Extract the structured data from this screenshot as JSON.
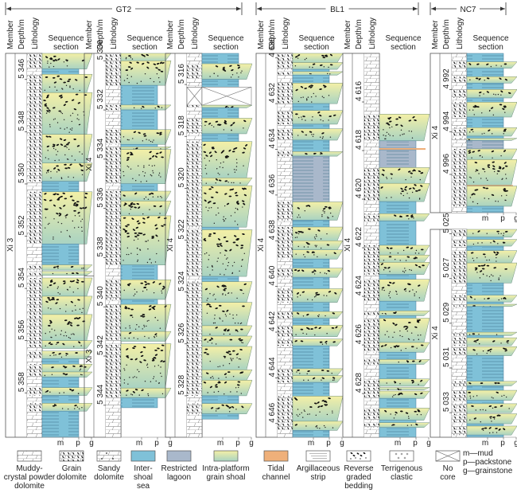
{
  "wells": [
    {
      "name": "GT2",
      "label": "GT2"
    },
    {
      "name": "BL1",
      "label": "BL1"
    },
    {
      "name": "NC7",
      "label": "NC7"
    }
  ],
  "column_headers": {
    "member": "Member",
    "depth": "Depth/m",
    "lithology": "Lithology",
    "sequence_line1": "Sequence",
    "sequence_line2": "section"
  },
  "scale_labels": {
    "m": "m",
    "p": "p",
    "g": "g"
  },
  "columns": [
    {
      "well": "GT2",
      "members": [
        {
          "label": "Xi 3",
          "from": 0,
          "to": 1
        }
      ],
      "depths": [
        "5 346",
        "5 348",
        "5 350",
        "5 352",
        "5 354",
        "5 356",
        "5 358"
      ],
      "depth_start": 5345.0,
      "depth_end": 5359.7,
      "beds": [
        [
          "shoal",
          0.0,
          0.6,
          "g"
        ],
        [
          "inter",
          0.6,
          0.8,
          "p"
        ],
        [
          "shoal",
          0.8,
          1.5,
          "g"
        ],
        [
          "shoal",
          1.5,
          3.1,
          "g"
        ],
        [
          "shoal",
          3.1,
          4.2,
          "g"
        ],
        [
          "shoal",
          4.2,
          4.9,
          "g"
        ],
        [
          "inter",
          4.9,
          5.3,
          "p"
        ],
        [
          "shoal",
          5.3,
          7.3,
          "g"
        ],
        [
          "inter",
          7.3,
          8.1,
          "p"
        ],
        [
          "shoal",
          8.1,
          8.3,
          "g"
        ],
        [
          "shoal",
          8.35,
          8.5,
          "g"
        ],
        [
          "shoal",
          8.6,
          9.3,
          "g"
        ],
        [
          "shoal",
          9.3,
          10.0,
          "g"
        ],
        [
          "shoal",
          10.0,
          11.0,
          "g"
        ],
        [
          "shoal",
          11.0,
          11.3,
          "g"
        ],
        [
          "shoal",
          11.4,
          11.7,
          "g"
        ],
        [
          "inter",
          11.7,
          11.9,
          "p"
        ],
        [
          "shoal",
          11.9,
          12.2,
          "g"
        ],
        [
          "shoal",
          12.2,
          12.4,
          "g"
        ],
        [
          "inter",
          12.4,
          12.8,
          "p"
        ],
        [
          "shoal",
          12.8,
          13.1,
          "g"
        ],
        [
          "inter",
          13.1,
          13.4,
          "p"
        ],
        [
          "shoal",
          13.4,
          13.7,
          "g"
        ],
        [
          "inter",
          13.7,
          14.7,
          "p"
        ]
      ]
    },
    {
      "well": "GT2",
      "members": [
        {
          "label": "Xi 4",
          "from": 0,
          "to": 0.58
        },
        {
          "label": "Xi 3",
          "from": 0.58,
          "to": 1
        }
      ],
      "depths": [
        "5 330",
        "5 332",
        "5 334",
        "5 336",
        "5 338",
        "5 340",
        "5 342",
        "5 344"
      ],
      "depth_start": 5329.7,
      "depth_end": 5345.3,
      "beds": [
        [
          "shoal",
          0.0,
          0.3,
          "g"
        ],
        [
          "shoal",
          0.3,
          1.3,
          "g"
        ],
        [
          "inter",
          1.3,
          2.1,
          "p"
        ],
        [
          "shoal",
          2.1,
          2.3,
          "g"
        ],
        [
          "inter",
          2.3,
          3.1,
          "p"
        ],
        [
          "shoal",
          3.1,
          3.7,
          "g"
        ],
        [
          "inter",
          3.7,
          3.8,
          "p"
        ],
        [
          "shoal",
          3.8,
          3.9,
          "g"
        ],
        [
          "shoal",
          3.9,
          5.3,
          "g"
        ],
        [
          "inter",
          5.3,
          5.6,
          "p"
        ],
        [
          "shoal",
          5.6,
          6.0,
          "g"
        ],
        [
          "shoal",
          6.0,
          6.6,
          "g"
        ],
        [
          "shoal",
          6.6,
          8.6,
          "g"
        ],
        [
          "inter",
          8.6,
          9.2,
          "p"
        ],
        [
          "shoal",
          9.2,
          10.0,
          "g"
        ],
        [
          "inter",
          10.0,
          10.2,
          "p"
        ],
        [
          "shoal",
          10.2,
          11.3,
          "g"
        ],
        [
          "shoal",
          11.3,
          11.7,
          "g"
        ],
        [
          "shoal",
          11.8,
          13.6,
          "g"
        ],
        [
          "shoal",
          13.6,
          14.0,
          "g"
        ],
        [
          "inter",
          14.0,
          14.4,
          "p"
        ]
      ]
    },
    {
      "well": "GT2",
      "members": [
        {
          "label": "Xi 4",
          "from": 0,
          "to": 1
        }
      ],
      "depths": [
        "5 316",
        "5 318",
        "5 320",
        "5 322",
        "5 324",
        "5 326",
        "5 328"
      ],
      "depth_start": 5314.8,
      "depth_end": 5329.6,
      "beds": [
        [
          "inter",
          0.0,
          0.4,
          "p"
        ],
        [
          "shoal",
          0.4,
          1.0,
          "g"
        ],
        [
          "inter",
          1.0,
          1.3,
          "p"
        ],
        [
          "nocore",
          1.3,
          2.0,
          "g"
        ],
        [
          "shoal",
          2.0,
          2.1,
          "g"
        ],
        [
          "inter",
          2.1,
          2.5,
          "p"
        ],
        [
          "shoal",
          2.5,
          3.1,
          "g"
        ],
        [
          "inter",
          3.1,
          3.4,
          "p"
        ],
        [
          "shoal",
          3.4,
          4.8,
          "g"
        ],
        [
          "shoal",
          4.8,
          5.1,
          "g"
        ],
        [
          "shoal",
          5.1,
          6.7,
          "g"
        ],
        [
          "inter",
          6.7,
          6.8,
          "p"
        ],
        [
          "shoal",
          6.8,
          8.6,
          "g"
        ],
        [
          "inter",
          8.6,
          8.8,
          "p"
        ],
        [
          "shoal",
          8.8,
          9.6,
          "g"
        ],
        [
          "shoal",
          9.6,
          10.5,
          "g"
        ],
        [
          "shoal",
          10.5,
          10.9,
          "g"
        ],
        [
          "shoal",
          10.9,
          11.3,
          "g"
        ],
        [
          "shoal",
          11.3,
          12.2,
          "g"
        ],
        [
          "shoal",
          12.2,
          12.6,
          "g"
        ],
        [
          "shoal",
          12.6,
          13.2,
          "g"
        ],
        [
          "inter",
          13.2,
          13.5,
          "p"
        ],
        [
          "shoal",
          13.5,
          13.9,
          "g"
        ],
        [
          "inter",
          13.9,
          14.1,
          "p"
        ]
      ]
    },
    {
      "well": "BL1",
      "members": [
        {
          "label": "Xi 4",
          "from": 0,
          "to": 1
        }
      ],
      "depths": [
        "4 630",
        "4 632",
        "4 634",
        "4 636",
        "4 638",
        "4 640",
        "4 642",
        "4 644",
        "4 646"
      ],
      "depth_start": 4629.8,
      "depth_end": 4646.6,
      "beds": [
        [
          "shoal",
          0.0,
          0.4,
          "g"
        ],
        [
          "shoal",
          0.4,
          0.7,
          "g"
        ],
        [
          "inter",
          0.7,
          0.8,
          "p"
        ],
        [
          "shoal",
          0.8,
          0.95,
          "g"
        ],
        [
          "inter",
          0.95,
          1.3,
          "p"
        ],
        [
          "shoal",
          1.3,
          2.2,
          "g"
        ],
        [
          "inter",
          2.2,
          2.5,
          "p"
        ],
        [
          "shoal",
          2.5,
          3.1,
          "g"
        ],
        [
          "inter",
          3.1,
          3.3,
          "p"
        ],
        [
          "shoal",
          3.3,
          3.8,
          "g"
        ],
        [
          "inter",
          3.8,
          4.3,
          "p"
        ],
        [
          "shoal",
          4.3,
          4.5,
          "g"
        ],
        [
          "lagoon",
          4.5,
          6.5,
          "p"
        ],
        [
          "shoal",
          6.5,
          7.3,
          "g"
        ],
        [
          "inter",
          7.3,
          7.6,
          "p"
        ],
        [
          "shoal",
          7.6,
          8.2,
          "g"
        ],
        [
          "shoal",
          8.2,
          8.6,
          "g"
        ],
        [
          "shoal",
          8.6,
          9.0,
          "g"
        ],
        [
          "inter",
          9.0,
          9.4,
          "p"
        ],
        [
          "shoal",
          9.4,
          9.8,
          "g"
        ],
        [
          "inter",
          9.8,
          10.3,
          "p"
        ],
        [
          "shoal",
          10.3,
          10.9,
          "g"
        ],
        [
          "inter",
          10.9,
          11.3,
          "p"
        ],
        [
          "shoal",
          11.3,
          11.6,
          "g"
        ],
        [
          "inter",
          11.6,
          11.9,
          "p"
        ],
        [
          "shoal",
          11.9,
          12.4,
          "g"
        ],
        [
          "shoal",
          12.5,
          12.8,
          "g"
        ],
        [
          "inter",
          12.8,
          13.8,
          "p"
        ],
        [
          "shoal",
          13.8,
          14.1,
          "g"
        ],
        [
          "shoal",
          14.1,
          14.4,
          "g"
        ],
        [
          "inter",
          14.4,
          15.0,
          "p"
        ],
        [
          "shoal",
          15.0,
          16.1,
          "g"
        ],
        [
          "shoal",
          16.1,
          16.5,
          "g"
        ],
        [
          "inter",
          16.5,
          16.8,
          "p"
        ]
      ]
    },
    {
      "well": "BL1",
      "members": [
        {
          "label": "Xi 4",
          "from": 0,
          "to": 1
        }
      ],
      "depths": [
        "4 616",
        "4 618",
        "4 620",
        "4 622",
        "4 624",
        "4 626",
        "4 628"
      ],
      "depth_start": 4614.0,
      "depth_end": 4629.8,
      "beds": [
        [
          "shoal",
          2.5,
          3.6,
          "g"
        ],
        [
          "lagoon",
          3.6,
          3.9,
          "p"
        ],
        [
          "tidal",
          3.9,
          3.97,
          "g"
        ],
        [
          "lagoon",
          3.97,
          4.7,
          "p"
        ],
        [
          "shoal",
          4.7,
          5.35,
          "g"
        ],
        [
          "shoal",
          5.35,
          6.1,
          "g"
        ],
        [
          "inter",
          6.1,
          6.6,
          "p"
        ],
        [
          "shoal",
          6.6,
          6.9,
          "g"
        ],
        [
          "inter",
          6.9,
          7.9,
          "p"
        ],
        [
          "shoal",
          7.9,
          8.3,
          "g"
        ],
        [
          "shoal",
          8.3,
          8.6,
          "g"
        ],
        [
          "shoal",
          8.6,
          9.1,
          "g"
        ],
        [
          "inter",
          9.1,
          9.3,
          "p"
        ],
        [
          "shoal",
          9.3,
          10.2,
          "g"
        ],
        [
          "inter",
          10.2,
          10.6,
          "p"
        ],
        [
          "shoal",
          10.6,
          10.8,
          "g"
        ],
        [
          "inter",
          10.8,
          10.9,
          "p"
        ],
        [
          "shoal",
          10.9,
          11.9,
          "g"
        ],
        [
          "shoal",
          11.9,
          12.3,
          "g"
        ],
        [
          "inter",
          12.3,
          12.6,
          "p"
        ],
        [
          "shoal",
          12.6,
          12.8,
          "g"
        ],
        [
          "inter",
          12.8,
          13.4,
          "p"
        ],
        [
          "shoal",
          13.4,
          13.7,
          "g"
        ],
        [
          "shoal",
          13.75,
          13.85,
          "g"
        ],
        [
          "shoal",
          13.9,
          14.2,
          "g"
        ],
        [
          "inter",
          14.2,
          14.6,
          "p"
        ],
        [
          "shoal",
          14.6,
          15.1,
          "g"
        ],
        [
          "inter",
          15.1,
          15.2,
          "p"
        ],
        [
          "shoal",
          15.2,
          15.4,
          "g"
        ],
        [
          "inter",
          15.4,
          15.8,
          "p"
        ]
      ]
    },
    {
      "well": "NC7",
      "members": [
        {
          "label": "Xi 4",
          "from": 0,
          "to": 1
        }
      ],
      "depths": [
        "4 992",
        "4 994",
        "4 996"
      ],
      "depth_start": 4990.3,
      "depth_end": 4997.8,
      "beds": [
        [
          "inter",
          0.0,
          0.4,
          "p"
        ],
        [
          "shoal",
          0.4,
          0.7,
          "g"
        ],
        [
          "inter",
          0.7,
          1.1,
          "p"
        ],
        [
          "shoal",
          1.1,
          1.4,
          "g"
        ],
        [
          "inter",
          1.4,
          1.7,
          "p"
        ],
        [
          "shoal",
          1.7,
          2.1,
          "g"
        ],
        [
          "inter",
          2.1,
          2.3,
          "p"
        ],
        [
          "shoal",
          2.3,
          3.0,
          "g"
        ],
        [
          "inter",
          3.0,
          3.5,
          "p"
        ],
        [
          "shoal",
          3.5,
          3.9,
          "g"
        ],
        [
          "inter",
          3.9,
          4.0,
          "p"
        ],
        [
          "shoal",
          4.0,
          4.1,
          "g"
        ],
        [
          "lagoon",
          4.1,
          4.5,
          "p"
        ],
        [
          "shoal",
          4.5,
          5.0,
          "g"
        ],
        [
          "shoal",
          5.0,
          6.2,
          "g"
        ],
        [
          "tidal",
          6.2,
          6.25,
          "g"
        ],
        [
          "shoal",
          6.25,
          7.2,
          "g"
        ],
        [
          "inter",
          7.2,
          7.5,
          "p"
        ]
      ]
    },
    {
      "well": "NC7",
      "members": [
        {
          "label": "Xi 4",
          "from": 0,
          "to": 1
        }
      ],
      "depths": [
        "5 025",
        "5 027",
        "5 029",
        "5 031",
        "5 033"
      ],
      "depth_start": 5024.8,
      "depth_end": 5034.1,
      "beds": [
        [
          "shoal",
          0.0,
          0.35,
          "g"
        ],
        [
          "inter",
          0.35,
          0.45,
          "p"
        ],
        [
          "shoal",
          0.45,
          0.75,
          "g"
        ],
        [
          "inter",
          0.75,
          0.95,
          "p"
        ],
        [
          "shoal",
          0.95,
          1.5,
          "g"
        ],
        [
          "shoal",
          1.5,
          2.4,
          "g"
        ],
        [
          "inter",
          2.4,
          2.95,
          "p"
        ],
        [
          "shoal",
          2.95,
          3.25,
          "g"
        ],
        [
          "inter",
          3.25,
          3.35,
          "p"
        ],
        [
          "shoal",
          3.35,
          3.45,
          "g"
        ],
        [
          "inter",
          3.45,
          4.6,
          "p"
        ],
        [
          "shoal",
          4.6,
          4.75,
          "g"
        ],
        [
          "inter",
          4.75,
          4.85,
          "p"
        ],
        [
          "shoal",
          4.85,
          5.2,
          "g"
        ],
        [
          "shoal",
          5.25,
          5.65,
          "g"
        ],
        [
          "inter",
          5.65,
          6.8,
          "p"
        ],
        [
          "shoal",
          6.8,
          7.0,
          "g"
        ],
        [
          "inter",
          7.0,
          7.2,
          "p"
        ],
        [
          "shoal",
          7.2,
          7.65,
          "g"
        ],
        [
          "inter",
          7.65,
          7.8,
          "p"
        ],
        [
          "shoal",
          7.8,
          8.2,
          "g"
        ],
        [
          "shoal",
          8.25,
          8.7,
          "g"
        ],
        [
          "inter",
          8.7,
          8.8,
          "p"
        ],
        [
          "shoal",
          8.8,
          9.2,
          "g"
        ],
        [
          "inter",
          9.2,
          9.3,
          "p"
        ]
      ]
    }
  ],
  "legend": [
    {
      "key": "muddy-crystal-powder-dolomite",
      "lines": [
        "Muddy-",
        "crystal powder",
        "dolomite"
      ]
    },
    {
      "key": "grain-dolomite",
      "lines": [
        "Grain",
        "dolomite"
      ]
    },
    {
      "key": "sandy-dolomite",
      "lines": [
        "Sandy",
        "dolomite"
      ]
    },
    {
      "key": "inter-shoal-sea",
      "lines": [
        "Inter-",
        "shoal",
        "sea"
      ]
    },
    {
      "key": "restricted-lagoon",
      "lines": [
        "Restricted",
        "lagoon"
      ]
    },
    {
      "key": "intra-platform-grain-shoal",
      "lines": [
        "Intra-platform",
        "grain shoal"
      ]
    },
    {
      "key": "tidal-channel",
      "lines": [
        "Tidal",
        "channel"
      ]
    },
    {
      "key": "argillaceous-strip",
      "lines": [
        "Argillaceous",
        "strip"
      ]
    },
    {
      "key": "reverse-graded-bedding",
      "lines": [
        "Reverse",
        "graded",
        "bedding"
      ]
    },
    {
      "key": "terrigenous-clastic",
      "lines": [
        "Terrigenous",
        "clastic"
      ]
    },
    {
      "key": "no-core",
      "lines": [
        "No",
        "core"
      ]
    }
  ],
  "texture_key": [
    "m—mud",
    "p—packstone",
    "g—grainstone"
  ],
  "colors": {
    "inter_shoal_sea": "#7fc1d8",
    "restricted_lagoon": "#a9b8cb",
    "shoal_top": "#f4f0a6",
    "shoal_bottom": "#a9d3c2",
    "tidal_channel": "#efb07a",
    "line": "#555555"
  }
}
